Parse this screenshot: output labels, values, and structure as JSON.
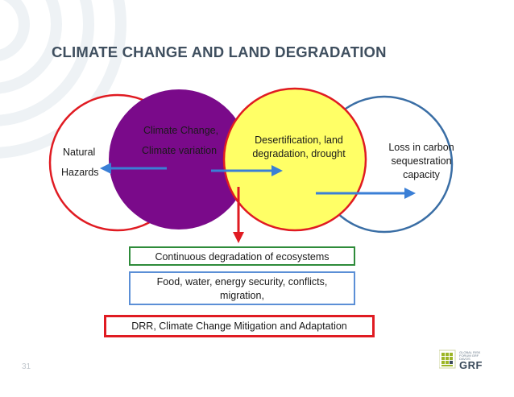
{
  "slide": {
    "title": "CLIMATE CHANGE AND LAND DEGRADATION",
    "page_number": "31"
  },
  "circles": {
    "natural_hazards": {
      "line1": "Natural",
      "line2": "Hazards",
      "color": "#e01b22"
    },
    "climate_change": {
      "line1": "Climate Change,",
      "line2": "Climate variation",
      "color": "#7a0a8a"
    },
    "desertification": {
      "line1": "Desertification, land",
      "line2": "degradation, drought",
      "fill": "#ffff66",
      "stroke": "#e01b22"
    },
    "carbon_loss": {
      "line1": "Loss in carbon",
      "line2": "sequestration",
      "line3": "capacity",
      "color": "#3a6ea5"
    }
  },
  "boxes": {
    "ecosystems": {
      "text": "Continuous degradation of ecosystems",
      "border": "#2e8b3a"
    },
    "food_security": {
      "line1": "Food, water, energy security, conflicts,",
      "line2": "migration,",
      "border": "#5b8fd6"
    },
    "drr": {
      "text": "DRR, Climate Change Mitigation and Adaptation",
      "border": "#e01b22"
    }
  },
  "colors": {
    "arrow_blue": "#3a7fd6",
    "arrow_red": "#e01b22",
    "title": "#3f4f5f"
  },
  "logo": {
    "name": "GRF",
    "small_text": "GLOBAL RISK FORUM GRF DAVOS"
  }
}
